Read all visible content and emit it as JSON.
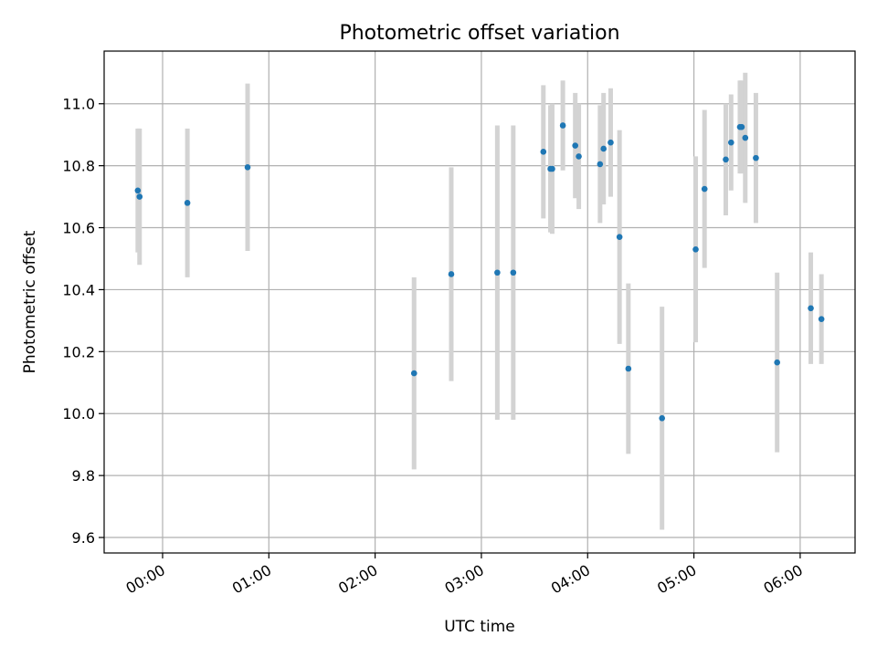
{
  "chart_data": {
    "type": "scatter",
    "title": "Photometric offset variation",
    "xlabel": "UTC time",
    "ylabel": "Photometric offset",
    "xlim": [
      "23:27",
      "06:31"
    ],
    "ylim": [
      9.55,
      11.17
    ],
    "grid": true,
    "x_ticks": [
      "00:00",
      "01:00",
      "02:00",
      "03:00",
      "04:00",
      "05:00",
      "06:00"
    ],
    "y_ticks": [
      "9.6",
      "9.8",
      "10.0",
      "10.2",
      "10.4",
      "10.6",
      "10.8",
      "11.0"
    ],
    "colors": {
      "point": "#1f77b4",
      "errorbar": "#d3d3d3",
      "grid": "#b0b0b0"
    },
    "points": [
      {
        "x": "23:46",
        "y": 10.72,
        "y_err": 0.2
      },
      {
        "x": "23:47",
        "y": 10.7,
        "y_err": 0.22
      },
      {
        "x": "00:14",
        "y": 10.68,
        "y_err": 0.24
      },
      {
        "x": "00:48",
        "y": 10.795,
        "y_err": 0.27
      },
      {
        "x": "02:22",
        "y": 10.13,
        "y_err": 0.31
      },
      {
        "x": "02:43",
        "y": 10.45,
        "y_err": 0.345
      },
      {
        "x": "03:09",
        "y": 10.455,
        "y_err": 0.475
      },
      {
        "x": "03:18",
        "y": 10.455,
        "y_err": 0.475
      },
      {
        "x": "03:35",
        "y": 10.845,
        "y_err": 0.215
      },
      {
        "x": "03:39",
        "y": 10.79,
        "y_err": 0.205
      },
      {
        "x": "03:40",
        "y": 10.79,
        "y_err": 0.21
      },
      {
        "x": "03:46",
        "y": 10.93,
        "y_err": 0.145
      },
      {
        "x": "03:53",
        "y": 10.865,
        "y_err": 0.17
      },
      {
        "x": "03:55",
        "y": 10.83,
        "y_err": 0.17
      },
      {
        "x": "04:07",
        "y": 10.805,
        "y_err": 0.19
      },
      {
        "x": "04:09",
        "y": 10.855,
        "y_err": 0.18
      },
      {
        "x": "04:13",
        "y": 10.875,
        "y_err": 0.175
      },
      {
        "x": "04:18",
        "y": 10.57,
        "y_err": 0.345
      },
      {
        "x": "04:23",
        "y": 10.145,
        "y_err": 0.275
      },
      {
        "x": "04:42",
        "y": 9.985,
        "y_err": 0.36
      },
      {
        "x": "05:01",
        "y": 10.53,
        "y_err": 0.3
      },
      {
        "x": "05:06",
        "y": 10.725,
        "y_err": 0.255
      },
      {
        "x": "05:18",
        "y": 10.82,
        "y_err": 0.18
      },
      {
        "x": "05:21",
        "y": 10.875,
        "y_err": 0.155
      },
      {
        "x": "05:26",
        "y": 10.925,
        "y_err": 0.15
      },
      {
        "x": "05:27",
        "y": 10.925,
        "y_err": 0.15
      },
      {
        "x": "05:29",
        "y": 10.89,
        "y_err": 0.21
      },
      {
        "x": "05:35",
        "y": 10.825,
        "y_err": 0.21
      },
      {
        "x": "05:47",
        "y": 10.165,
        "y_err": 0.29
      },
      {
        "x": "06:06",
        "y": 10.34,
        "y_err": 0.18
      },
      {
        "x": "06:12",
        "y": 10.305,
        "y_err": 0.145
      }
    ]
  }
}
